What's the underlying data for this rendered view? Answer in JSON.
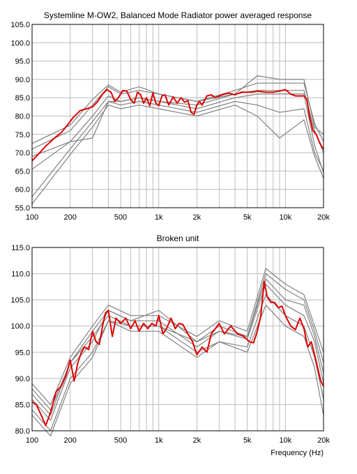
{
  "chart_data": [
    {
      "type": "line",
      "title": "Systemline M-OW2, Balanced Mode Radiator power averaged response",
      "xlabel": "",
      "ylabel": "",
      "xscale": "log",
      "xlim": [
        100,
        20000
      ],
      "ylim": [
        55,
        105
      ],
      "x_ticks": [
        {
          "value": 100,
          "label": "100"
        },
        {
          "value": 200,
          "label": "200"
        },
        {
          "value": 500,
          "label": "500"
        },
        {
          "value": 1000,
          "label": "1k"
        },
        {
          "value": 2000,
          "label": "2k"
        },
        {
          "value": 5000,
          "label": "5k"
        },
        {
          "value": 10000,
          "label": "10k"
        },
        {
          "value": 20000,
          "label": "20k"
        }
      ],
      "y_ticks": [
        "55.0",
        "60.0",
        "65.0",
        "70.0",
        "75.0",
        "80.0",
        "85.0",
        "90.0",
        "95.0",
        "100.0",
        "105.0"
      ],
      "grid": true,
      "colors": {
        "average": "#e00000",
        "individual": "#808080",
        "grid": "#bcbcbc"
      },
      "average_series": {
        "x": [
          100,
          115,
          130,
          150,
          170,
          190,
          210,
          240,
          270,
          300,
          330,
          360,
          390,
          420,
          450,
          480,
          520,
          560,
          600,
          640,
          680,
          720,
          760,
          800,
          850,
          900,
          950,
          1000,
          1060,
          1120,
          1200,
          1300,
          1400,
          1500,
          1600,
          1700,
          1800,
          1900,
          2000,
          2100,
          2200,
          2400,
          2600,
          2800,
          3000,
          3300,
          3600,
          4000,
          4500,
          5000,
          5500,
          6000,
          7000,
          8000,
          9000,
          10000,
          11000,
          12000,
          13000,
          14000,
          14800,
          15500,
          16500,
          17500,
          18500,
          19500,
          20000
        ],
        "y": [
          67.8,
          70,
          72,
          74,
          75.5,
          77.5,
          79.5,
          81.5,
          82,
          82.5,
          84,
          86,
          87.2,
          86.5,
          84,
          85,
          87,
          86.8,
          84.5,
          83.5,
          86.5,
          85.8,
          83.5,
          85,
          82.8,
          86.3,
          83.5,
          82.8,
          85.5,
          85.8,
          83,
          85.2,
          83.5,
          85,
          83.8,
          84.2,
          81,
          80.5,
          83,
          84,
          83,
          85.5,
          85.8,
          85,
          85.5,
          86,
          86.2,
          85.8,
          86.5,
          86.5,
          86.5,
          86.8,
          86.5,
          86.5,
          86.8,
          87.2,
          86,
          85.5,
          85.5,
          85.5,
          84.5,
          80,
          76,
          75,
          73,
          71.5,
          71
        ]
      },
      "individual_series": [
        {
          "x": [
            100,
            200,
            300,
            400,
            500,
            700,
            1000,
            2000,
            4000,
            6000,
            9000,
            14000,
            17000,
            20000
          ],
          "y": [
            65.5,
            73,
            80,
            85.5,
            84,
            85,
            84,
            82,
            85,
            86,
            86,
            86,
            72,
            64.5
          ]
        },
        {
          "x": [
            100,
            200,
            300,
            400,
            500,
            700,
            1000,
            2000,
            4000,
            6000,
            9000,
            14000,
            17000,
            20000
          ],
          "y": [
            71,
            76,
            83,
            88,
            86,
            87,
            86,
            84,
            87,
            89,
            89,
            89,
            78,
            73
          ]
        },
        {
          "x": [
            100,
            200,
            300,
            400,
            500,
            700,
            1000,
            2000,
            4000,
            6000,
            9000,
            14000,
            17000,
            20000
          ],
          "y": [
            58,
            71,
            78.5,
            84,
            83,
            84,
            83,
            81,
            84,
            83,
            81,
            82,
            70,
            65
          ]
        },
        {
          "x": [
            100,
            200,
            300,
            400,
            500,
            700,
            1000,
            2000,
            4000,
            6000,
            9000,
            14000,
            17000,
            20000
          ],
          "y": [
            72.5,
            77.5,
            84.5,
            88.5,
            86.5,
            88,
            86,
            84,
            86,
            91,
            90,
            90,
            77,
            75
          ]
        },
        {
          "x": [
            100,
            200,
            300,
            400,
            500,
            700,
            1000,
            2000,
            4000,
            6000,
            9000,
            14000,
            17000,
            20000
          ],
          "y": [
            56,
            69.5,
            77,
            83,
            82,
            83,
            82,
            80,
            83,
            80,
            74,
            79,
            69,
            63
          ]
        },
        {
          "x": [
            100,
            200,
            300,
            400,
            500,
            700,
            1000,
            2000,
            4000,
            6000,
            9000,
            14000,
            17000,
            20000
          ],
          "y": [
            69,
            73,
            74,
            84,
            84,
            85,
            84,
            83,
            86,
            87,
            87,
            87,
            76,
            70
          ]
        }
      ]
    },
    {
      "type": "line",
      "title": "Broken unit",
      "xlabel": "Frequency (Hz)",
      "ylabel": "",
      "xscale": "log",
      "xlim": [
        100,
        20000
      ],
      "ylim": [
        80,
        115
      ],
      "x_ticks": [
        {
          "value": 100,
          "label": "100"
        },
        {
          "value": 200,
          "label": "200"
        },
        {
          "value": 500,
          "label": "500"
        },
        {
          "value": 1000,
          "label": "1k"
        },
        {
          "value": 2000,
          "label": "2k"
        },
        {
          "value": 5000,
          "label": "5k"
        },
        {
          "value": 10000,
          "label": "10k"
        },
        {
          "value": 20000,
          "label": "20k"
        }
      ],
      "y_ticks": [
        "80.0",
        "85.0",
        "90.0",
        "95.0",
        "100.0",
        "105.0",
        "110.0",
        "115.0"
      ],
      "grid": true,
      "colors": {
        "average": "#e00000",
        "individual": "#808080",
        "grid": "#bcbcbc"
      },
      "average_series": {
        "x": [
          100,
          108,
          118,
          128,
          140,
          155,
          170,
          185,
          200,
          215,
          230,
          245,
          260,
          280,
          300,
          320,
          340,
          360,
          380,
          400,
          430,
          460,
          500,
          550,
          600,
          650,
          700,
          760,
          820,
          880,
          950,
          1000,
          1080,
          1150,
          1250,
          1350,
          1450,
          1550,
          1700,
          1850,
          2000,
          2200,
          2400,
          2600,
          2800,
          3000,
          3300,
          3700,
          4200,
          4700,
          5200,
          5600,
          6000,
          6400,
          6800,
          7200,
          7700,
          8200,
          8800,
          9400,
          10000,
          11000,
          12000,
          13000,
          14000,
          15000,
          16000,
          17000,
          18000,
          19000,
          20000
        ],
        "y": [
          85.5,
          85,
          83,
          81,
          83.5,
          87.5,
          88.5,
          90.5,
          93.5,
          89.5,
          93,
          95,
          96,
          95.5,
          99,
          97,
          96.5,
          100,
          102.5,
          103,
          98,
          101.5,
          100.5,
          101.5,
          99.5,
          101,
          99,
          100.5,
          99.5,
          100.5,
          100,
          102,
          98.5,
          99.5,
          101.5,
          99.5,
          100.5,
          100.3,
          98.5,
          97,
          94.5,
          96,
          95,
          98.5,
          99.5,
          100.5,
          98.5,
          100,
          98.5,
          98,
          97,
          96.8,
          99,
          102,
          108.5,
          105.5,
          104.5,
          104.5,
          103.5,
          103.8,
          102,
          100,
          99.3,
          101.5,
          99.5,
          96,
          97,
          94.5,
          92,
          89.5,
          88.5
        ]
      },
      "individual_series": [
        {
          "x": [
            100,
            140,
            200,
            300,
            400,
            600,
            1000,
            2000,
            3000,
            5000,
            7000,
            10000,
            14000,
            17000,
            20000
          ],
          "y": [
            86,
            82,
            92,
            97,
            103,
            101,
            101,
            96,
            99,
            97.5,
            108,
            104,
            102,
            97,
            89
          ]
        },
        {
          "x": [
            100,
            140,
            200,
            300,
            400,
            600,
            1000,
            2000,
            3000,
            5000,
            7000,
            10000,
            14000,
            17000,
            20000
          ],
          "y": [
            89,
            85,
            94,
            100,
            104,
            102,
            102,
            98,
            101,
            99,
            111,
            108,
            106,
            100,
            95
          ]
        },
        {
          "x": [
            100,
            140,
            200,
            300,
            400,
            600,
            1000,
            2000,
            3000,
            5000,
            7000,
            10000,
            14000,
            17000,
            20000
          ],
          "y": [
            83,
            79,
            89,
            94,
            101,
            99,
            99,
            94,
            97,
            95,
            104,
            100,
            98,
            92,
            83
          ]
        },
        {
          "x": [
            100,
            140,
            200,
            300,
            400,
            600,
            1000,
            2000,
            3000,
            5000,
            7000,
            10000,
            14000,
            17000,
            20000
          ],
          "y": [
            87,
            83,
            93,
            98,
            102,
            100,
            100,
            97,
            99,
            98,
            109,
            105,
            104,
            98,
            91
          ]
        },
        {
          "x": [
            100,
            140,
            200,
            300,
            400,
            600,
            1000,
            2000,
            3000,
            5000,
            7000,
            10000,
            14000,
            17000,
            20000
          ],
          "y": [
            84,
            80,
            90,
            95,
            101,
            100,
            100,
            95,
            97,
            96,
            106,
            102,
            100,
            94,
            86
          ]
        },
        {
          "x": [
            100,
            140,
            200,
            300,
            400,
            600,
            1000,
            2000,
            3000,
            5000,
            7000,
            10000,
            14000,
            17000,
            20000
          ],
          "y": [
            88,
            84,
            93,
            99,
            103,
            101,
            103,
            97,
            100,
            98,
            110,
            107,
            105,
            99,
            93
          ]
        }
      ]
    }
  ]
}
